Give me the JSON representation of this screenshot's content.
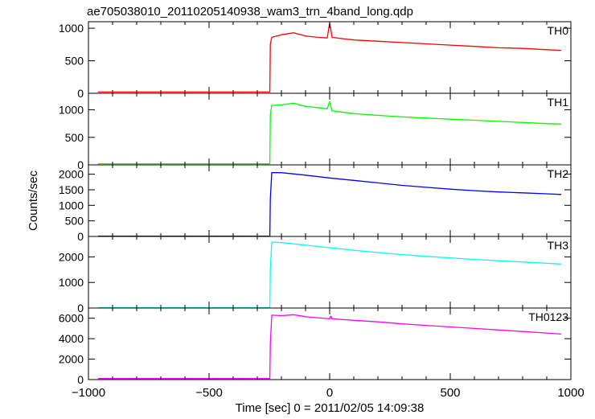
{
  "chart_data": {
    "type": "line",
    "title": "ae705038010_20110205140938_wam3_trn_4band_long.qdp",
    "xlabel": "Time [sec] 0 = 2011/02/05 14:09:38",
    "ylabel": "Counts/sec",
    "xlim": [
      -1000,
      1000
    ],
    "x_ticks": [
      -1000,
      -500,
      0,
      500,
      1000
    ],
    "x_tick_labels": [
      "−1000",
      "−500",
      "0",
      "500",
      "1000"
    ],
    "grid": false,
    "panels": [
      {
        "name": "TH0",
        "color": "#ff0000",
        "ylim": [
          0,
          1100
        ],
        "y_ticks": [
          0,
          500,
          1000
        ],
        "y_tick_labels": [
          "0",
          "500",
          "1000"
        ],
        "x": [
          -960,
          -248,
          -246,
          -240,
          -200,
          -150,
          -100,
          -50,
          -10,
          0,
          5,
          10,
          50,
          100,
          200,
          300,
          400,
          500,
          600,
          700,
          800,
          900,
          960
        ],
        "y": [
          20,
          20,
          750,
          860,
          900,
          930,
          880,
          860,
          850,
          1080,
          980,
          860,
          840,
          820,
          800,
          780,
          760,
          740,
          720,
          700,
          690,
          670,
          660
        ]
      },
      {
        "name": "TH1",
        "color": "#00ff00",
        "ylim": [
          0,
          1300
        ],
        "y_ticks": [
          0,
          500,
          1000
        ],
        "y_tick_labels": [
          "0",
          "500",
          "1000"
        ],
        "x": [
          -960,
          -248,
          -246,
          -240,
          -200,
          -150,
          -100,
          -50,
          -10,
          0,
          5,
          10,
          50,
          100,
          200,
          300,
          400,
          500,
          600,
          700,
          800,
          900,
          960
        ],
        "y": [
          20,
          20,
          900,
          1080,
          1090,
          1120,
          1060,
          1040,
          1020,
          1150,
          1060,
          980,
          960,
          930,
          900,
          870,
          850,
          830,
          810,
          790,
          770,
          750,
          740
        ]
      },
      {
        "name": "TH2",
        "color": "#0000ff",
        "ylim": [
          0,
          2300
        ],
        "y_ticks": [
          0,
          500,
          1000,
          1500,
          2000
        ],
        "y_tick_labels": [
          "0",
          "500",
          "1000",
          "1500",
          "2000"
        ],
        "x": [
          -960,
          -248,
          -246,
          -240,
          -200,
          -100,
          0,
          100,
          200,
          300,
          400,
          500,
          600,
          700,
          800,
          900,
          960
        ],
        "y": [
          10,
          10,
          1200,
          2050,
          2050,
          1970,
          1880,
          1800,
          1720,
          1640,
          1580,
          1520,
          1470,
          1430,
          1400,
          1370,
          1350
        ]
      },
      {
        "name": "TH3",
        "color": "#00ffff",
        "ylim": [
          0,
          2800
        ],
        "y_ticks": [
          0,
          1000,
          2000
        ],
        "y_tick_labels": [
          "0",
          "1000",
          "2000"
        ],
        "x": [
          -960,
          -248,
          -246,
          -240,
          -200,
          -100,
          0,
          100,
          200,
          300,
          400,
          500,
          600,
          700,
          800,
          900,
          960
        ],
        "y": [
          10,
          10,
          1500,
          2580,
          2560,
          2460,
          2360,
          2260,
          2170,
          2090,
          2020,
          1960,
          1900,
          1850,
          1800,
          1750,
          1720
        ]
      },
      {
        "name": "TH0123",
        "color": "#ff00ff",
        "ylim": [
          0,
          7000
        ],
        "y_ticks": [
          0,
          2000,
          4000,
          6000
        ],
        "y_tick_labels": [
          "0",
          "2000",
          "4000",
          "6000"
        ],
        "x": [
          -960,
          -248,
          -246,
          -240,
          -200,
          -150,
          -100,
          -50,
          0,
          5,
          10,
          100,
          200,
          300,
          400,
          500,
          600,
          700,
          800,
          900,
          960
        ],
        "y": [
          100,
          100,
          3500,
          6300,
          6250,
          6350,
          6150,
          6050,
          5950,
          6200,
          5950,
          5800,
          5650,
          5450,
          5300,
          5150,
          5000,
          4850,
          4700,
          4550,
          4450
        ]
      }
    ]
  }
}
